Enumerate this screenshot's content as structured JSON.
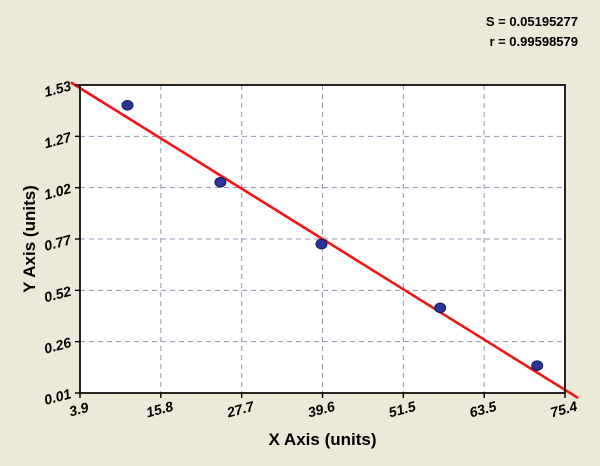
{
  "chart_data": {
    "type": "scatter",
    "title": "",
    "xlabel": "X Axis (units)",
    "ylabel": "Y Axis (units)",
    "xlim": [
      3.9,
      75.4
    ],
    "ylim": [
      0.01,
      1.53
    ],
    "grid": true,
    "x_ticks": [
      3.9,
      15.8,
      27.7,
      39.6,
      51.5,
      63.5,
      75.4
    ],
    "x_tick_labels": [
      "3.9",
      "15.8",
      "27.7",
      "39.6",
      "51.5",
      "63.5",
      "75.4"
    ],
    "y_ticks": [
      0.01,
      0.26,
      0.52,
      0.77,
      1.02,
      1.27,
      1.53
    ],
    "y_tick_labels": [
      "0.01",
      "0.26",
      "0.52",
      "0.77",
      "1.02",
      "1.27",
      "1.53"
    ],
    "points": [
      {
        "x": 10.9,
        "y": 1.43
      },
      {
        "x": 24.6,
        "y": 1.05
      },
      {
        "x": 39.5,
        "y": 0.745
      },
      {
        "x": 57.0,
        "y": 0.43
      },
      {
        "x": 71.3,
        "y": 0.145
      }
    ],
    "fit_line": {
      "x1": 2.7,
      "y1": 1.54,
      "x2": 77.2,
      "y2": -0.012
    },
    "annotations": [
      "S = 0.05195277",
      "r = 0.99598579"
    ],
    "legend": "none",
    "colors": {
      "background": "#ece9d8",
      "plot_bg": "#ffffff",
      "grid": "#9494b4",
      "border": "#000000",
      "point_fill": "#2c3596",
      "point_stroke": "#14195e",
      "line": "#f01414",
      "text": "#000000"
    }
  }
}
